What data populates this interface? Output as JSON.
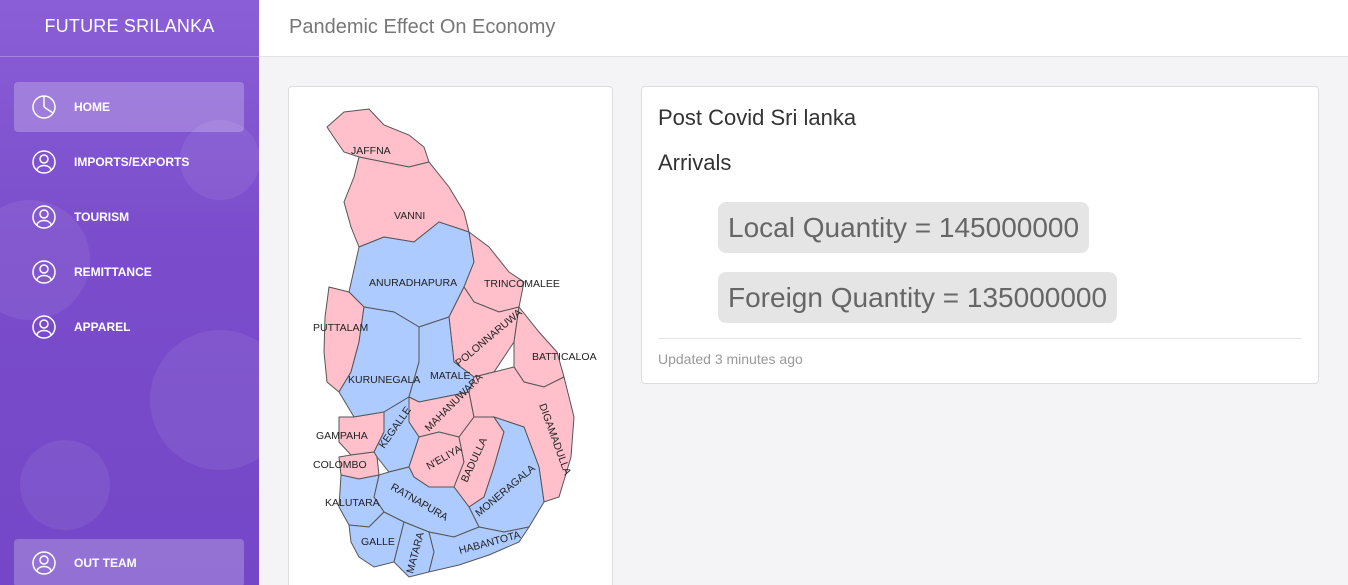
{
  "sidebar": {
    "brand": "FUTURE SRILANKA",
    "items": [
      {
        "label": "HOME",
        "icon": "pie-chart-icon",
        "active": true
      },
      {
        "label": "IMPORTS/EXPORTS",
        "icon": "user-icon"
      },
      {
        "label": "TOURISM",
        "icon": "user-icon"
      },
      {
        "label": "REMITTANCE",
        "icon": "user-icon"
      },
      {
        "label": "APPAREL",
        "icon": "user-icon"
      }
    ],
    "bottom_item": {
      "label": "OUT TEAM",
      "icon": "user-icon"
    }
  },
  "header": {
    "title": "Pandemic Effect On Economy"
  },
  "map": {
    "districts": {
      "jaffna": "JAFFNA",
      "vanni": "VANNI",
      "anuradhapura": "ANURADHAPURA",
      "trincomalee": "TRINCOMALEE",
      "puttalam": "PUTTALAM",
      "polonnaruwa": "POLONNARUWA",
      "batticaloa": "BATTICALOA",
      "kurunegala": "KURUNEGALA",
      "matale": "MATALE",
      "mahanuwara": "MAHANUWARA",
      "gampaha": "GAMPAHA",
      "kegalle": "KEGALLE",
      "digamadulla": "DIGAMADULLA",
      "nuwara_eliya": "N'ELIYA",
      "colombo": "COLOMBO",
      "badulla": "BADULLA",
      "ratnapura": "RATNAPURA",
      "kalutara": "KALUTARA",
      "moneragala": "MONERAGALA",
      "galle": "GALLE",
      "matara": "MATARA",
      "hambantota": "HABANTOTA"
    },
    "colors": {
      "pink": "#ffc0cb",
      "blue": "#aecbff",
      "border": "#999999"
    }
  },
  "card": {
    "title": "Post Covid Sri lanka",
    "subtitle": "Arrivals",
    "local": "Local Quantity = 145000000",
    "foreign": "Foreign Quantity = 135000000",
    "updated": "Updated 3 minutes ago"
  }
}
